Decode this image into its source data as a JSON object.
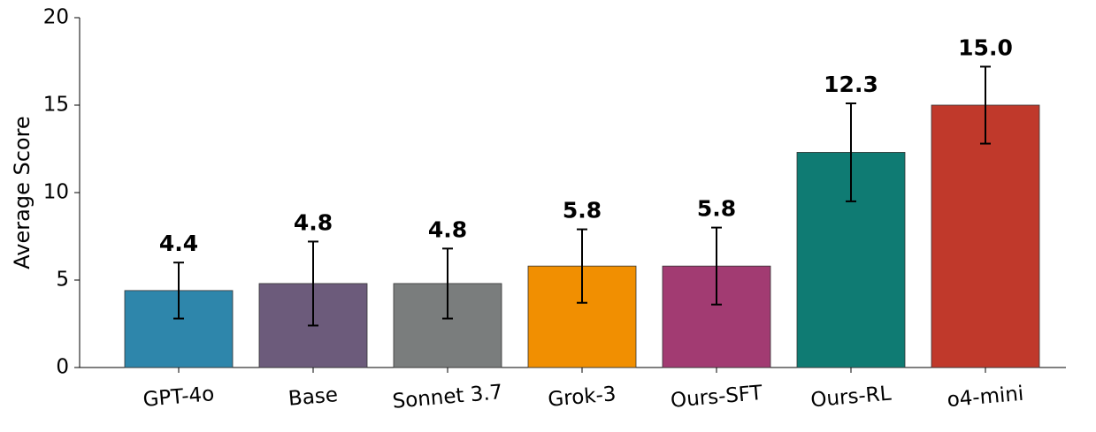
{
  "chart_data": {
    "type": "bar",
    "y_label": "Average Score",
    "categories": [
      "GPT-4o",
      "Base",
      "Sonnet 3.7",
      "Grok-3",
      "Ours-SFT",
      "Ours-RL",
      "o4-mini"
    ],
    "values": [
      4.4,
      4.8,
      4.8,
      5.8,
      5.8,
      12.3,
      15.0
    ],
    "value_labels": [
      "4.4",
      "4.8",
      "4.8",
      "5.8",
      "5.8",
      "12.3",
      "15.0"
    ],
    "errors": [
      1.6,
      2.4,
      2.0,
      2.1,
      2.2,
      2.8,
      2.2
    ],
    "colors": [
      "#2e86ab",
      "#6c5b7b",
      "#7a7d7d",
      "#f18f01",
      "#a23b72",
      "#0f7b73",
      "#c0392b"
    ],
    "ylim": [
      0,
      20
    ],
    "yticks": [
      0,
      5,
      10,
      15,
      20
    ],
    "grid": false
  }
}
